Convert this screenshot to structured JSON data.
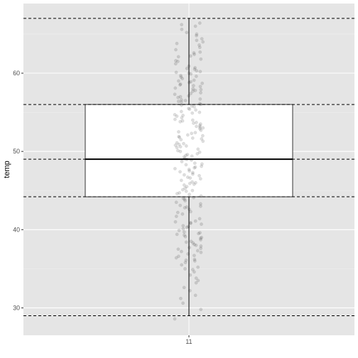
{
  "chart_data": {
    "type": "boxplot",
    "title": "",
    "xlabel": "",
    "ylabel": "temp",
    "categories": [
      "11"
    ],
    "ylim": [
      26.5,
      68.9
    ],
    "y_ticks": [
      30,
      40,
      50,
      60
    ],
    "y_tick_labels": [
      "30",
      "40",
      "50",
      "60"
    ],
    "grid": true,
    "box": {
      "min": 29.0,
      "q1": 44.2,
      "median": 49.0,
      "q3": 56.0,
      "max": 67.0
    },
    "reference_lines": [
      29.0,
      44.2,
      49.0,
      56.0,
      67.0
    ],
    "jitter_points_y": [
      28.6,
      29.8,
      30.6,
      31.2,
      31.6,
      32.2,
      32.6,
      33.2,
      33.8,
      34.2,
      34.6,
      34.9,
      35.2,
      35.5,
      35.8,
      36.0,
      36.2,
      36.4,
      36.7,
      36.9,
      37.1,
      37.3,
      37.5,
      37.7,
      37.9,
      38.1,
      38.3,
      38.5,
      38.7,
      38.9,
      39.1,
      39.3,
      39.5,
      39.7,
      39.9,
      40.1,
      40.3,
      40.5,
      40.7,
      40.9,
      41.1,
      41.4,
      41.7,
      42.0,
      42.3,
      42.6,
      42.9,
      43.1,
      43.3,
      43.5,
      43.7,
      43.9,
      44.1,
      44.3,
      44.5,
      44.7,
      44.9,
      45.1,
      45.3,
      45.5,
      45.7,
      45.9,
      46.1,
      46.3,
      46.5,
      46.7,
      46.9,
      47.1,
      47.3,
      47.5,
      47.7,
      47.9,
      48.1,
      48.3,
      48.5,
      48.7,
      48.9,
      49.1,
      49.3,
      49.5,
      49.7,
      49.9,
      50.1,
      50.3,
      50.5,
      50.7,
      50.9,
      51.1,
      51.3,
      51.5,
      51.7,
      51.9,
      52.1,
      52.3,
      52.5,
      52.7,
      52.9,
      53.1,
      53.3,
      53.5,
      53.7,
      53.9,
      54.1,
      54.3,
      54.5,
      54.7,
      54.9,
      55.1,
      55.3,
      55.5,
      55.7,
      55.9,
      56.1,
      56.3,
      56.5,
      56.7,
      56.9,
      57.1,
      57.3,
      57.5,
      57.7,
      57.9,
      58.1,
      58.3,
      58.5,
      58.7,
      58.9,
      59.1,
      59.3,
      59.5,
      59.7,
      59.9,
      60.1,
      60.3,
      60.5,
      60.7,
      60.9,
      61.2,
      61.5,
      61.8,
      62.1,
      62.4,
      62.7,
      63.0,
      63.3,
      63.6,
      64.0,
      64.4,
      64.8,
      65.2,
      65.6,
      66.0,
      66.4,
      36.1,
      37.2,
      38.4,
      39.6,
      40.8,
      42.8,
      45.0,
      46.0,
      47.0,
      48.0,
      49.0,
      50.0,
      51.0,
      52.0,
      53.0,
      54.0,
      55.0,
      56.0,
      57.0,
      58.0,
      59.0,
      60.0,
      62.2,
      64.2,
      39.0,
      40.4,
      47.4,
      49.6,
      51.8,
      53.6,
      55.4,
      57.4,
      58.8,
      59.6,
      35.0,
      38.0,
      41.0,
      44.0,
      46.6,
      50.6,
      52.4,
      54.6,
      56.6,
      58.4,
      60.6,
      63.8,
      65.0,
      33.5,
      37.6,
      43.0,
      45.8,
      48.4,
      50.8,
      53.2,
      55.8,
      57.8,
      60.2,
      61.6,
      36.6,
      39.4,
      42.2,
      44.6,
      47.8,
      49.4,
      51.6,
      53.8,
      56.4,
      58.6,
      62.6,
      66.2
    ]
  },
  "colors": {
    "panel_background": "#e5e5e5",
    "grid_major": "#ffffff",
    "grid_minor": "#f0f0f0",
    "box_fill": "#ffffff",
    "line": "#000000",
    "point": "#000000"
  }
}
